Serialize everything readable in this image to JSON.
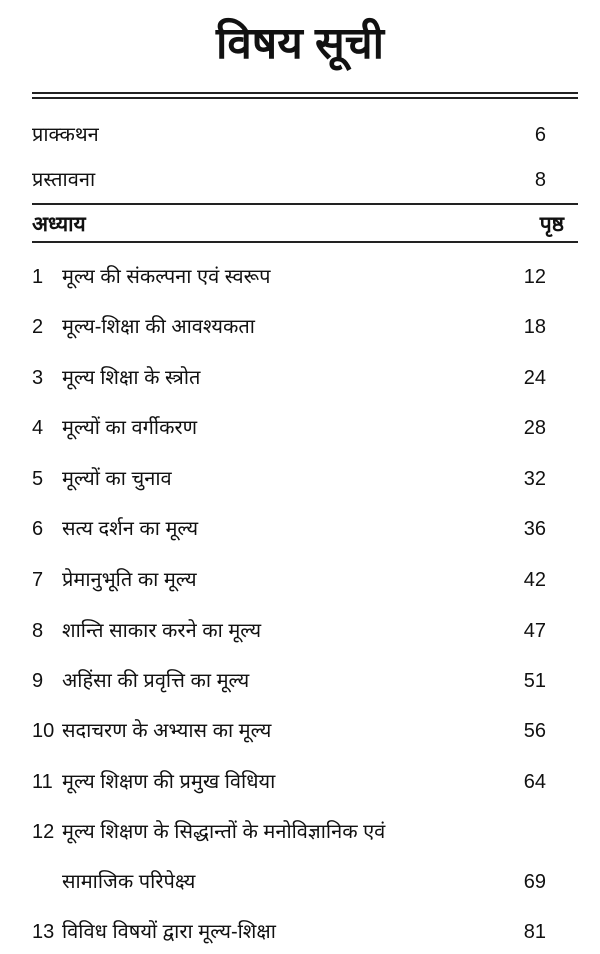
{
  "title": "विषय सूची",
  "front_matter": [
    {
      "label": "प्राक्कथन",
      "page": "6"
    },
    {
      "label": "प्रस्तावना",
      "page": "8"
    }
  ],
  "header": {
    "chapter": "अध्याय",
    "page": "पृष्ठ"
  },
  "chapters": [
    {
      "num": "1",
      "title": "मूल्य की संकल्पना एवं स्वरूप",
      "page": "12"
    },
    {
      "num": "2",
      "title": "मूल्य-शिक्षा की आवश्यकता",
      "page": "18"
    },
    {
      "num": "3",
      "title": "मूल्य शिक्षा के स्त्रोत",
      "page": "24"
    },
    {
      "num": "4",
      "title": "मूल्यों का वर्गीकरण",
      "page": "28"
    },
    {
      "num": "5",
      "title": "मूल्यों का चुनाव",
      "page": "32"
    },
    {
      "num": "6",
      "title": "सत्य दर्शन का मूल्य",
      "page": "36"
    },
    {
      "num": "7",
      "title": "प्रेमानुभूति का मूल्य",
      "page": "42"
    },
    {
      "num": "8",
      "title": "शान्ति साकार करने का मूल्य",
      "page": "47"
    },
    {
      "num": "9",
      "title": "अहिंसा की प्रवृत्ति का मूल्य",
      "page": "51"
    },
    {
      "num": "10",
      "title": "सदाचरण के अभ्यास का मूल्य",
      "page": "56"
    },
    {
      "num": "11",
      "title": "मूल्य शिक्षण की प्रमुख विधिया",
      "page": "64"
    },
    {
      "num": "12",
      "title": "मूल्य शिक्षण के सिद्धान्तों के मनोविज्ञानिक  एवं",
      "title_cont": "सामाजिक परिपेक्ष्य",
      "page": "69"
    },
    {
      "num": "13",
      "title": "विविध विषयों द्वारा मूल्य-शिक्षा",
      "page": "81"
    }
  ]
}
